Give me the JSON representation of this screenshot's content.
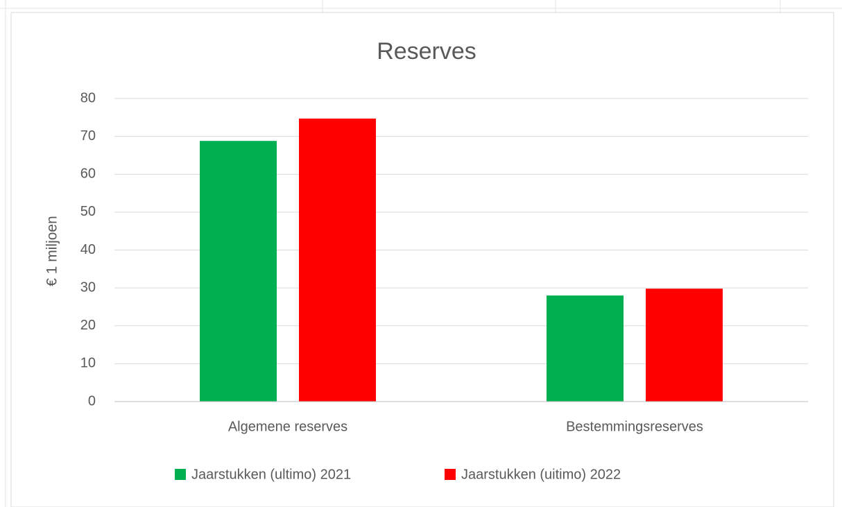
{
  "chart_data": {
    "type": "bar",
    "title": "Reserves",
    "y_label": "€ 1 miljoen",
    "categories": [
      "Algemene reserves",
      "Bestemmingsreserves"
    ],
    "series": [
      {
        "name": "Jaarstukken (ultimo) 2021",
        "color": "#00b050",
        "values": [
          68.8,
          28
        ]
      },
      {
        "name": "Jaarstukken (uitimo) 2022",
        "color": "#ff0000",
        "values": [
          74.7,
          29.8
        ]
      }
    ],
    "ylim": [
      0,
      80
    ],
    "yticks": [
      0,
      10,
      20,
      30,
      40,
      50,
      60,
      70,
      80
    ],
    "grid": true,
    "legend": "bottom"
  }
}
